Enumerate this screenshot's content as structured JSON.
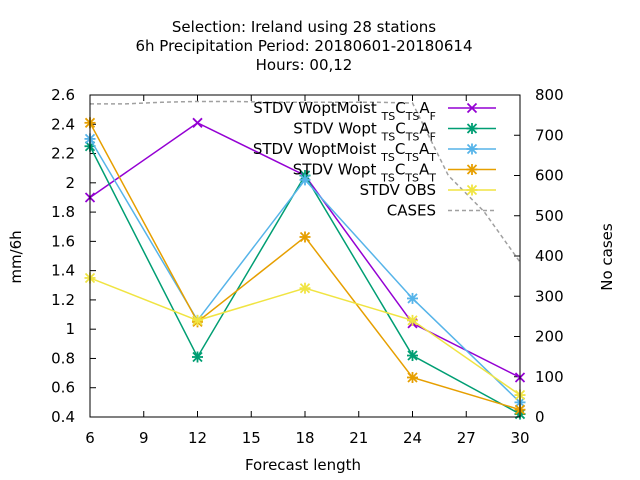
{
  "chart_data": {
    "type": "line",
    "title_lines": [
      "Selection: Ireland using    28 stations",
      "6h Precipitation   Period: 20180601-20180614",
      "Hours:  00,12"
    ],
    "xlabel": "Forecast length",
    "ylabel": "mm/6h",
    "y2label": "No cases",
    "xlim": [
      6,
      30
    ],
    "ylim": [
      0.4,
      2.6
    ],
    "y2lim": [
      0,
      800
    ],
    "xticks": [
      "6",
      "9",
      "12",
      "15",
      "18",
      "21",
      "24",
      "27",
      "30"
    ],
    "yticks": [
      "0.4",
      "0.6",
      "0.8",
      "1",
      "1.2",
      "1.4",
      "1.6",
      "1.8",
      "2",
      "2.2",
      "2.4",
      "2.6"
    ],
    "y2ticks": [
      "0",
      "100",
      "200",
      "300",
      "400",
      "500",
      "600",
      "700",
      "800"
    ],
    "x": [
      6,
      12,
      18,
      24,
      30
    ],
    "legend_placement": "top-right",
    "series": [
      {
        "name": "STDV WoptMoist",
        "sub1": "TS",
        "mid": "C",
        "sub2": "TS",
        "end": "A",
        "sub3": "F",
        "color": "#9400d3",
        "marker": "x",
        "values": [
          1.9,
          2.41,
          2.05,
          1.04,
          0.67
        ]
      },
      {
        "name": "STDV Wopt",
        "sub1": "TS",
        "mid": "C",
        "sub2": "TS",
        "end": "A",
        "sub3": "F",
        "color": "#009e73",
        "marker": "star",
        "values": [
          2.25,
          0.81,
          2.05,
          0.82,
          0.42
        ]
      },
      {
        "name": "STDV WoptMoist",
        "sub1": "TS",
        "mid": "C",
        "sub2": "TS",
        "end": "A",
        "sub3": "T",
        "color": "#56b4e9",
        "marker": "star",
        "values": [
          2.3,
          1.06,
          2.02,
          1.21,
          0.5
        ]
      },
      {
        "name": "STDV Wopt",
        "sub1": "TS",
        "mid": "C",
        "sub2": "TS",
        "end": "A",
        "sub3": "T",
        "color": "#e69f00",
        "marker": "star",
        "values": [
          2.41,
          1.05,
          1.63,
          0.67,
          0.45
        ]
      },
      {
        "name": "STDV OBS",
        "color": "#f0e442",
        "marker": "star",
        "values": [
          1.35,
          1.06,
          1.28,
          1.06,
          0.55
        ]
      },
      {
        "name": "CASES",
        "axis": "y2",
        "color": "#a0a0a0",
        "dash": true,
        "x": [
          6,
          8,
          10,
          12,
          14,
          16,
          18,
          20,
          22,
          24,
          26,
          28,
          30
        ],
        "values": [
          778,
          778,
          782,
          784,
          784,
          782,
          782,
          782,
          782,
          780,
          600,
          510,
          385
        ]
      }
    ]
  }
}
